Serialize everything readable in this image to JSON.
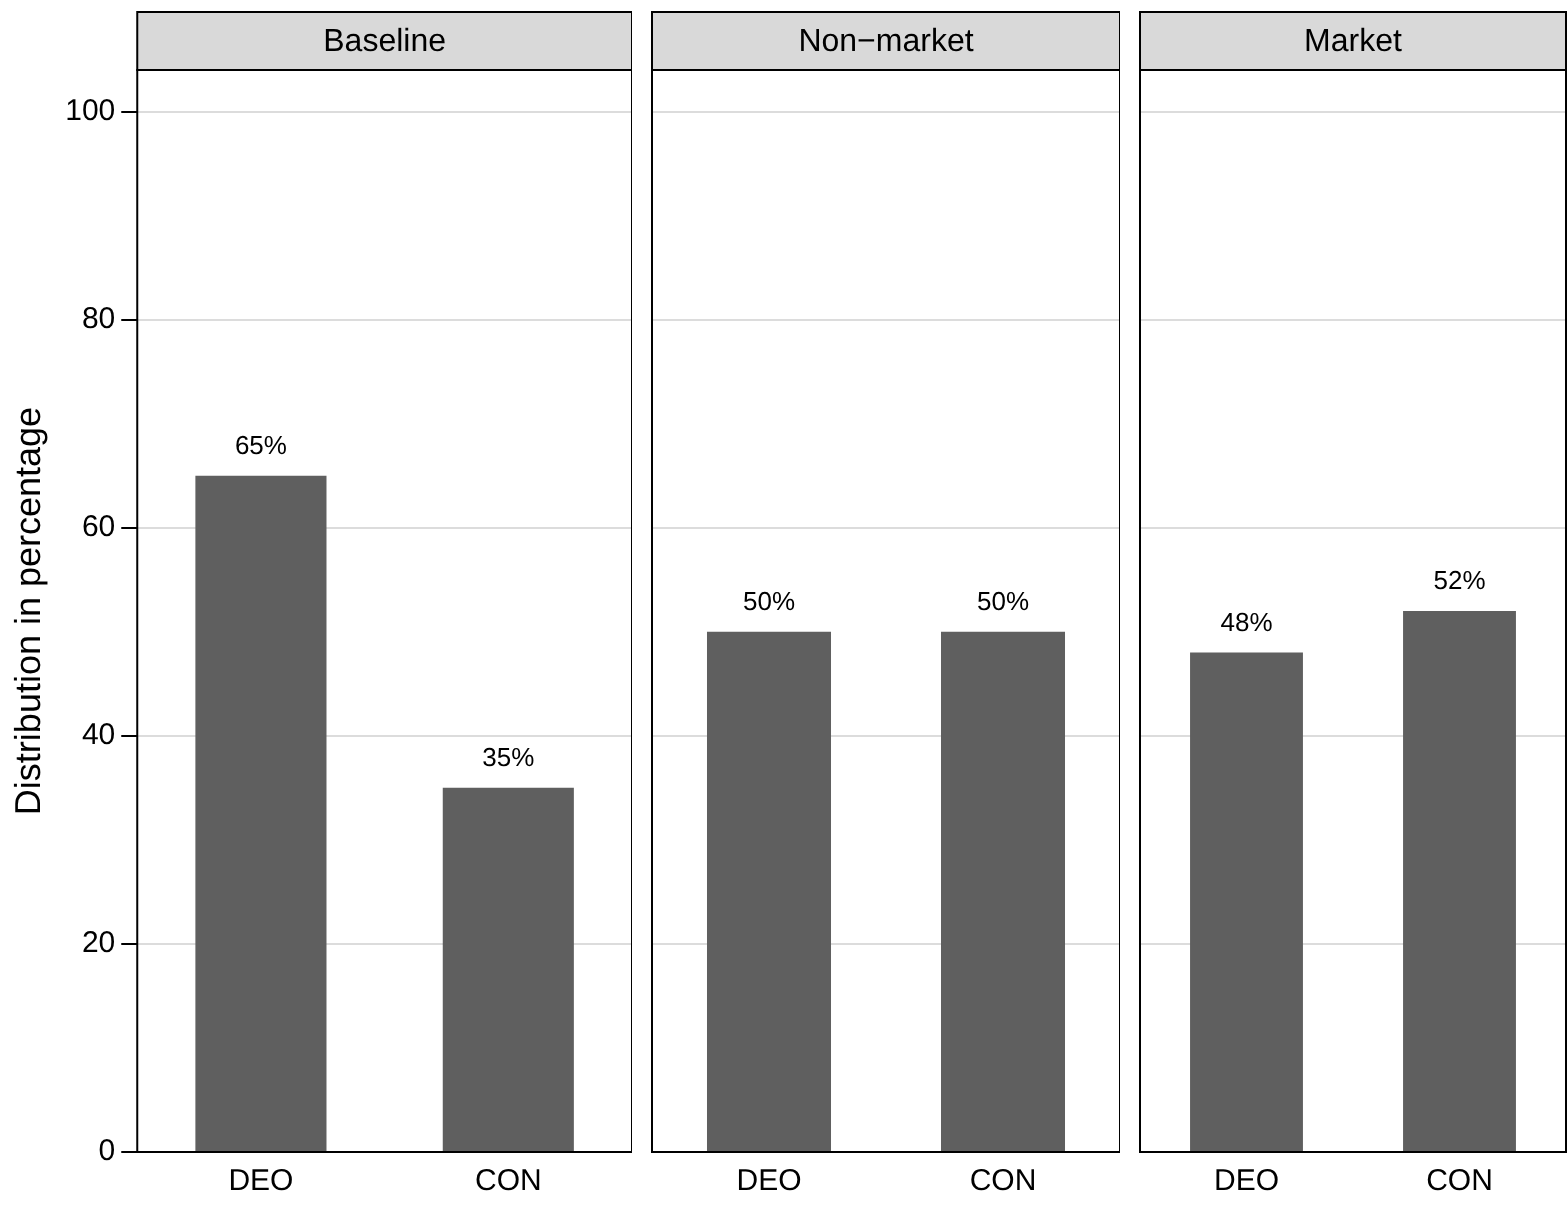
{
  "chart_data": [
    {
      "type": "bar",
      "title": "Baseline",
      "ylabel": "Distribution in percentage",
      "categories": [
        "DEO",
        "CON"
      ],
      "values": [
        65,
        35
      ],
      "value_labels": [
        "65%",
        "35%"
      ],
      "color": "#5f5f5f",
      "ylim": [
        0,
        104
      ],
      "yticks": [
        0,
        20,
        40,
        60,
        80,
        100
      ],
      "grid": "y"
    },
    {
      "type": "bar",
      "title": "Non−market",
      "categories": [
        "DEO",
        "CON"
      ],
      "values": [
        50,
        50
      ],
      "value_labels": [
        "50%",
        "50%"
      ],
      "color": "#5f5f5f",
      "ylim": [
        0,
        104
      ],
      "yticks": [
        0,
        20,
        40,
        60,
        80,
        100
      ],
      "grid": "y",
      "tick_labels": "x"
    },
    {
      "type": "bar",
      "title": "Market",
      "categories": [
        "DEO",
        "CON"
      ],
      "values": [
        48,
        52
      ],
      "value_labels": [
        "48%",
        "52%"
      ],
      "color": "#5f5f5f",
      "ylim": [
        0,
        104
      ],
      "yticks": [
        0,
        20,
        40,
        60,
        80,
        100
      ],
      "grid": "y",
      "tick_labels": "x"
    }
  ]
}
